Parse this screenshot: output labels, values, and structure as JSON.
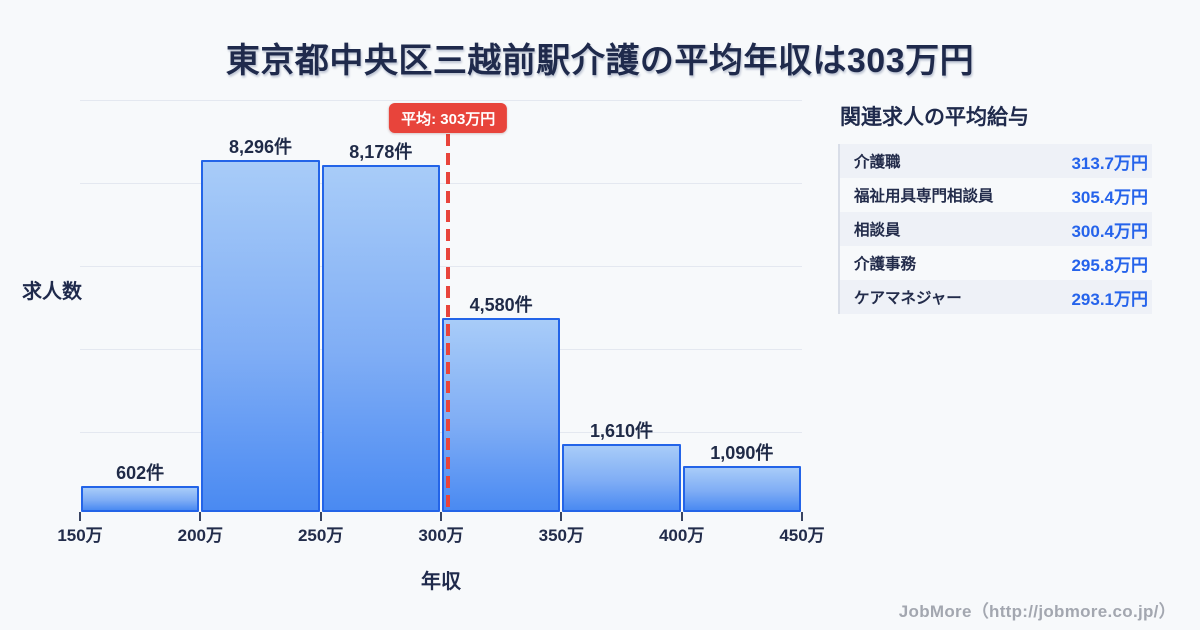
{
  "title": "東京都中央区三越前駅介護の平均年収は303万円",
  "chart_data": {
    "type": "bar",
    "title": "東京都中央区三越前駅介護の平均年収は303万円",
    "xlabel": "年収",
    "ylabel": "求人数",
    "x_ticks": [
      "150万",
      "200万",
      "250万",
      "300万",
      "350万",
      "400万",
      "450万"
    ],
    "x_range_man_yen": [
      150,
      450
    ],
    "ylim": [
      0,
      8800
    ],
    "grid": true,
    "bins": [
      {
        "range": "150万-200万",
        "value": 602,
        "label": "602件"
      },
      {
        "range": "200万-250万",
        "value": 8296,
        "label": "8,296件"
      },
      {
        "range": "250万-300万",
        "value": 8178,
        "label": "8,178件"
      },
      {
        "range": "300万-350万",
        "value": 4580,
        "label": "4,580件"
      },
      {
        "range": "350万-400万",
        "value": 1610,
        "label": "1,610件"
      },
      {
        "range": "400万-450万",
        "value": 1090,
        "label": "1,090件"
      }
    ],
    "average_line": {
      "label": "平均: 303万円",
      "value_man_yen": 303,
      "color": "#e8443b"
    }
  },
  "side_panel": {
    "title": "関連求人の平均給与",
    "rows": [
      {
        "label": "介護職",
        "value": "313.7万円"
      },
      {
        "label": "福祉用具専門相談員",
        "value": "305.4万円"
      },
      {
        "label": "相談員",
        "value": "300.4万円"
      },
      {
        "label": "介護事務",
        "value": "295.8万円"
      },
      {
        "label": "ケアマネジャー",
        "value": "293.1万円"
      }
    ]
  },
  "footer": {
    "credit": "JobMore（http://jobmore.co.jp/）"
  },
  "colors": {
    "background": "#f7f9fb",
    "title_text": "#1f2a4c",
    "bar_fill_top": "#a8ccf8",
    "bar_fill_bottom": "#4a8af2",
    "bar_border": "#2364e8",
    "average_accent": "#e8443b",
    "panel_value_blue": "#2563eb",
    "gridline": "#e4e8f0",
    "footer_text": "#a3a7b0"
  }
}
